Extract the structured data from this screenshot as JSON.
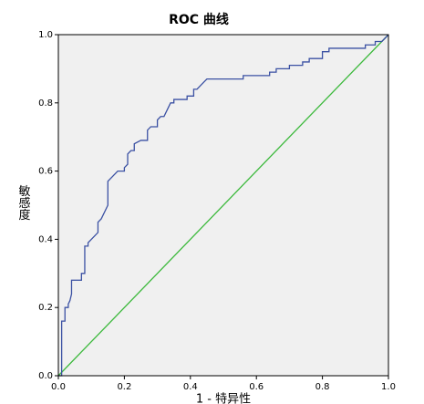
{
  "chart_data": {
    "type": "line",
    "title": "ROC 曲线",
    "x_label": "1 - 特异性",
    "y_label": "敏感度",
    "xlim": [
      0,
      1
    ],
    "ylim": [
      0,
      1
    ],
    "xticks": [
      {
        "value": 0,
        "label": "0.0"
      },
      0.2,
      0.4,
      0.6,
      0.8,
      {
        "value": 1,
        "label": "1.0"
      }
    ],
    "yticks": [
      {
        "value": 0,
        "label": "0.0"
      },
      0.2,
      0.4,
      0.6,
      0.8,
      {
        "value": 1,
        "label": "1.0"
      }
    ],
    "background": "#f0f0f0",
    "series": [
      {
        "color": "#3b51a3",
        "x": [
          0,
          0.01,
          0.01,
          0.02,
          0.02,
          0.03,
          0.03,
          0.035,
          0.04,
          0.04,
          0.07,
          0.07,
          0.08,
          0.08,
          0.09,
          0.09,
          0.1,
          0.11,
          0.12,
          0.12,
          0.13,
          0.14,
          0.15,
          0.15,
          0.16,
          0.17,
          0.18,
          0.2,
          0.2,
          0.21,
          0.21,
          0.22,
          0.23,
          0.23,
          0.25,
          0.27,
          0.27,
          0.28,
          0.3,
          0.3,
          0.31,
          0.32,
          0.34,
          0.35,
          0.35,
          0.39,
          0.39,
          0.41,
          0.41,
          0.42,
          0.43,
          0.44,
          0.45,
          0.56,
          0.56,
          0.64,
          0.64,
          0.66,
          0.66,
          0.7,
          0.7,
          0.74,
          0.74,
          0.76,
          0.76,
          0.8,
          0.8,
          0.82,
          0.82,
          0.93,
          0.93,
          0.96,
          0.96,
          0.98,
          0.99,
          1
        ],
        "values": [
          0,
          0,
          0.16,
          0.16,
          0.2,
          0.2,
          0.21,
          0.22,
          0.24,
          0.28,
          0.28,
          0.3,
          0.3,
          0.38,
          0.38,
          0.39,
          0.4,
          0.41,
          0.42,
          0.45,
          0.46,
          0.48,
          0.5,
          0.57,
          0.58,
          0.59,
          0.6,
          0.6,
          0.61,
          0.62,
          0.65,
          0.66,
          0.66,
          0.68,
          0.69,
          0.69,
          0.72,
          0.73,
          0.73,
          0.75,
          0.76,
          0.76,
          0.8,
          0.8,
          0.81,
          0.81,
          0.82,
          0.82,
          0.84,
          0.84,
          0.85,
          0.86,
          0.87,
          0.87,
          0.88,
          0.88,
          0.89,
          0.89,
          0.9,
          0.9,
          0.91,
          0.91,
          0.92,
          0.92,
          0.93,
          0.93,
          0.95,
          0.95,
          0.96,
          0.96,
          0.97,
          0.97,
          0.98,
          0.98,
          0.99,
          1
        ]
      },
      {
        "color": "#3cb93c",
        "x": [
          0,
          1
        ],
        "values": [
          0,
          1
        ]
      }
    ]
  }
}
